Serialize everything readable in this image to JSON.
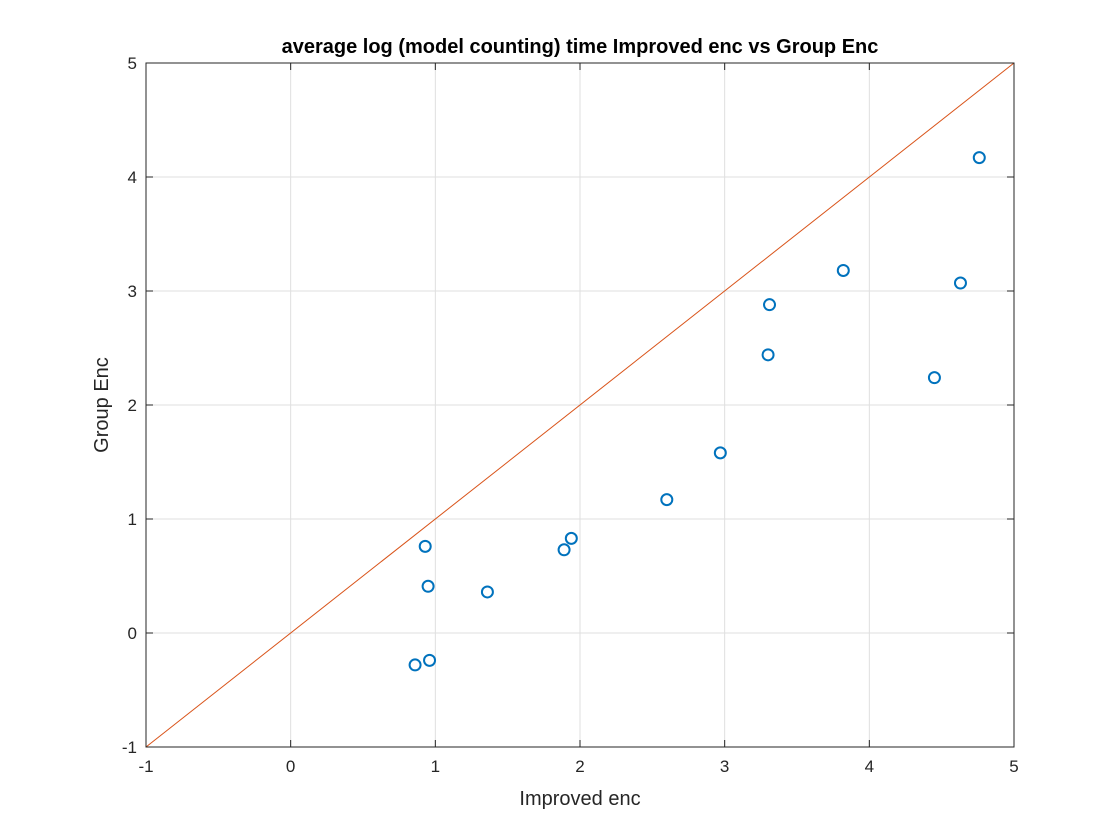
{
  "chart_data": {
    "type": "scatter",
    "title": "average log (model counting) time Improved enc vs Group Enc",
    "xlabel": "Improved enc",
    "ylabel": "Group Enc",
    "xlim": [
      -1,
      5
    ],
    "ylim": [
      -1,
      5
    ],
    "xticks": [
      "-1",
      "0",
      "1",
      "2",
      "3",
      "4",
      "5"
    ],
    "yticks": [
      "-1",
      "0",
      "1",
      "2",
      "3",
      "4",
      "5"
    ],
    "grid": true,
    "reference_line": {
      "x": [
        -1,
        5
      ],
      "y": [
        -1,
        5
      ],
      "color": "#D95319"
    },
    "marker_color": "#0072BD",
    "series": [
      {
        "points": [
          {
            "x": 0.86,
            "y": -0.28
          },
          {
            "x": 0.96,
            "y": -0.24
          },
          {
            "x": 0.95,
            "y": 0.41
          },
          {
            "x": 0.93,
            "y": 0.76
          },
          {
            "x": 1.36,
            "y": 0.36
          },
          {
            "x": 1.89,
            "y": 0.73
          },
          {
            "x": 1.94,
            "y": 0.83
          },
          {
            "x": 2.6,
            "y": 1.17
          },
          {
            "x": 2.97,
            "y": 1.58
          },
          {
            "x": 3.3,
            "y": 2.44
          },
          {
            "x": 3.31,
            "y": 2.88
          },
          {
            "x": 3.82,
            "y": 3.18
          },
          {
            "x": 4.45,
            "y": 2.24
          },
          {
            "x": 4.63,
            "y": 3.07
          },
          {
            "x": 4.76,
            "y": 4.17
          }
        ]
      }
    ]
  }
}
